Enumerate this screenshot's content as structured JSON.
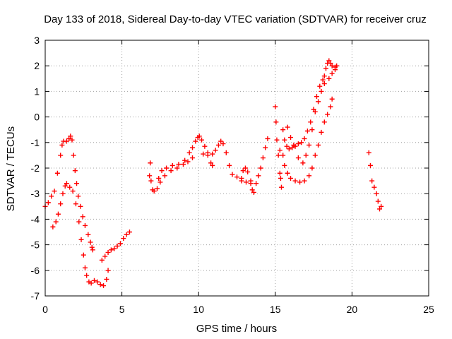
{
  "chart_data": {
    "type": "scatter",
    "title": "Day 133 of 2018, Sidereal Day-to-day VTEC variation (SDTVAR) for receiver cruz",
    "xlabel": "GPS time / hours",
    "ylabel": "SDTVAR / TECUs",
    "xlim": [
      0,
      25
    ],
    "ylim": [
      -7,
      3
    ],
    "xticks": [
      "0",
      "5",
      "10",
      "15",
      "20",
      "25"
    ],
    "yticks": [
      "-7",
      "-6",
      "-5",
      "-4",
      "-3",
      "-2",
      "-1",
      "0",
      "1",
      "2",
      "3"
    ],
    "grid": true,
    "marker": "plus",
    "color": "#ff0000",
    "series": [
      {
        "points": [
          [
            0.0,
            -3.5
          ],
          [
            0.2,
            -3.35
          ],
          [
            0.4,
            -3.1
          ],
          [
            0.6,
            -2.9
          ],
          [
            0.8,
            -2.2
          ],
          [
            1.0,
            -1.5
          ],
          [
            1.1,
            -1.1
          ],
          [
            1.2,
            -0.95
          ],
          [
            1.4,
            -0.95
          ],
          [
            1.55,
            -0.85
          ],
          [
            1.65,
            -0.75
          ],
          [
            1.75,
            -0.9
          ],
          [
            1.85,
            -1.5
          ],
          [
            1.95,
            -2.1
          ],
          [
            2.05,
            -2.6
          ],
          [
            2.15,
            -3.1
          ],
          [
            2.3,
            -3.5
          ],
          [
            2.45,
            -3.9
          ],
          [
            2.6,
            -4.25
          ],
          [
            2.8,
            -4.6
          ],
          [
            2.95,
            -4.9
          ],
          [
            3.05,
            -5.1
          ],
          [
            3.1,
            -5.2
          ],
          [
            0.5,
            -4.3
          ],
          [
            0.7,
            -4.1
          ],
          [
            0.85,
            -3.8
          ],
          [
            1.0,
            -3.4
          ],
          [
            1.15,
            -3.0
          ],
          [
            1.3,
            -2.7
          ],
          [
            1.4,
            -2.6
          ],
          [
            1.6,
            -2.75
          ],
          [
            1.8,
            -2.9
          ],
          [
            2.0,
            -3.4
          ],
          [
            2.2,
            -4.1
          ],
          [
            2.35,
            -4.8
          ],
          [
            2.5,
            -5.4
          ],
          [
            2.6,
            -5.9
          ],
          [
            2.7,
            -6.2
          ],
          [
            2.85,
            -6.45
          ],
          [
            3.0,
            -6.5
          ],
          [
            3.2,
            -6.4
          ],
          [
            3.4,
            -6.45
          ],
          [
            3.6,
            -6.55
          ],
          [
            3.8,
            -6.6
          ],
          [
            4.0,
            -6.35
          ],
          [
            4.1,
            -6.0
          ],
          [
            3.7,
            -5.6
          ],
          [
            3.9,
            -5.45
          ],
          [
            4.1,
            -5.3
          ],
          [
            4.3,
            -5.2
          ],
          [
            4.5,
            -5.15
          ],
          [
            4.7,
            -5.05
          ],
          [
            4.9,
            -4.95
          ],
          [
            5.1,
            -4.75
          ],
          [
            5.3,
            -4.6
          ],
          [
            5.5,
            -4.5
          ],
          [
            6.8,
            -2.3
          ],
          [
            6.85,
            -1.8
          ],
          [
            6.9,
            -2.5
          ],
          [
            7.0,
            -2.85
          ],
          [
            7.1,
            -2.9
          ],
          [
            7.3,
            -2.8
          ],
          [
            7.5,
            -2.55
          ],
          [
            7.8,
            -2.3
          ],
          [
            8.2,
            -2.1
          ],
          [
            8.6,
            -2.0
          ],
          [
            9.0,
            -1.85
          ],
          [
            9.3,
            -1.75
          ],
          [
            9.6,
            -1.6
          ],
          [
            7.4,
            -2.4
          ],
          [
            7.6,
            -2.1
          ],
          [
            7.9,
            -2.0
          ],
          [
            8.3,
            -1.9
          ],
          [
            8.7,
            -1.85
          ],
          [
            9.1,
            -1.7
          ],
          [
            9.4,
            -1.4
          ],
          [
            9.6,
            -1.2
          ],
          [
            9.8,
            -0.95
          ],
          [
            9.95,
            -0.8
          ],
          [
            10.05,
            -0.75
          ],
          [
            10.2,
            -0.9
          ],
          [
            10.4,
            -1.15
          ],
          [
            10.6,
            -1.5
          ],
          [
            10.8,
            -1.8
          ],
          [
            10.9,
            -1.9
          ],
          [
            10.3,
            -1.45
          ],
          [
            10.6,
            -1.4
          ],
          [
            10.9,
            -1.45
          ],
          [
            11.1,
            -1.3
          ],
          [
            11.3,
            -1.1
          ],
          [
            11.45,
            -0.95
          ],
          [
            11.6,
            -1.05
          ],
          [
            11.8,
            -1.4
          ],
          [
            12.0,
            -1.9
          ],
          [
            12.2,
            -2.25
          ],
          [
            12.5,
            -2.35
          ],
          [
            12.8,
            -2.5
          ],
          [
            13.1,
            -2.55
          ],
          [
            13.4,
            -2.6
          ],
          [
            12.8,
            -2.4
          ],
          [
            12.9,
            -2.1
          ],
          [
            13.05,
            -2.0
          ],
          [
            13.2,
            -2.15
          ],
          [
            13.4,
            -2.5
          ],
          [
            13.5,
            -2.85
          ],
          [
            13.6,
            -2.95
          ],
          [
            13.75,
            -2.6
          ],
          [
            13.9,
            -2.3
          ],
          [
            14.05,
            -2.0
          ],
          [
            14.2,
            -1.6
          ],
          [
            14.35,
            -1.2
          ],
          [
            14.5,
            -0.85
          ],
          [
            15.0,
            0.4
          ],
          [
            15.05,
            -0.2
          ],
          [
            15.1,
            -0.9
          ],
          [
            15.2,
            -1.5
          ],
          [
            15.3,
            -2.2
          ],
          [
            15.4,
            -2.75
          ],
          [
            15.35,
            -2.4
          ],
          [
            15.3,
            -1.3
          ],
          [
            15.5,
            -0.5
          ],
          [
            15.6,
            -0.9
          ],
          [
            15.75,
            -1.15
          ],
          [
            15.9,
            -1.25
          ],
          [
            16.1,
            -1.2
          ],
          [
            16.3,
            -1.15
          ],
          [
            16.5,
            -1.05
          ],
          [
            16.7,
            -1.0
          ],
          [
            16.9,
            -0.85
          ],
          [
            17.1,
            -0.55
          ],
          [
            17.3,
            -0.2
          ],
          [
            17.5,
            0.3
          ],
          [
            17.7,
            0.8
          ],
          [
            17.9,
            1.2
          ],
          [
            18.1,
            1.45
          ],
          [
            18.2,
            1.6
          ],
          [
            18.3,
            1.9
          ],
          [
            18.4,
            2.1
          ],
          [
            18.5,
            2.2
          ],
          [
            18.6,
            2.1
          ],
          [
            18.7,
            2.0
          ],
          [
            18.9,
            1.95
          ],
          [
            19.0,
            2.0
          ],
          [
            15.5,
            -1.5
          ],
          [
            15.6,
            -1.9
          ],
          [
            15.8,
            -2.2
          ],
          [
            16.0,
            -2.4
          ],
          [
            16.3,
            -2.5
          ],
          [
            16.6,
            -2.55
          ],
          [
            16.9,
            -2.5
          ],
          [
            17.2,
            -2.3
          ],
          [
            17.4,
            -2.0
          ],
          [
            17.6,
            -1.5
          ],
          [
            17.8,
            -1.1
          ],
          [
            18.0,
            -0.6
          ],
          [
            18.2,
            -0.2
          ],
          [
            18.4,
            0.1
          ],
          [
            18.6,
            0.4
          ],
          [
            18.7,
            0.7
          ],
          [
            15.8,
            -0.4
          ],
          [
            16.0,
            -0.8
          ],
          [
            16.2,
            -1.1
          ],
          [
            16.5,
            -1.6
          ],
          [
            16.8,
            -1.8
          ],
          [
            17.0,
            -1.5
          ],
          [
            17.2,
            -1.1
          ],
          [
            17.4,
            -0.5
          ],
          [
            17.6,
            0.2
          ],
          [
            17.8,
            0.6
          ],
          [
            18.0,
            1.0
          ],
          [
            18.2,
            1.3
          ],
          [
            18.5,
            1.5
          ],
          [
            18.7,
            1.7
          ],
          [
            18.9,
            1.85
          ],
          [
            21.1,
            -1.4
          ],
          [
            21.2,
            -1.9
          ],
          [
            21.3,
            -2.5
          ],
          [
            21.45,
            -2.75
          ],
          [
            21.6,
            -3.0
          ],
          [
            21.7,
            -3.3
          ],
          [
            21.8,
            -3.6
          ],
          [
            21.9,
            -3.5
          ]
        ]
      }
    ]
  }
}
